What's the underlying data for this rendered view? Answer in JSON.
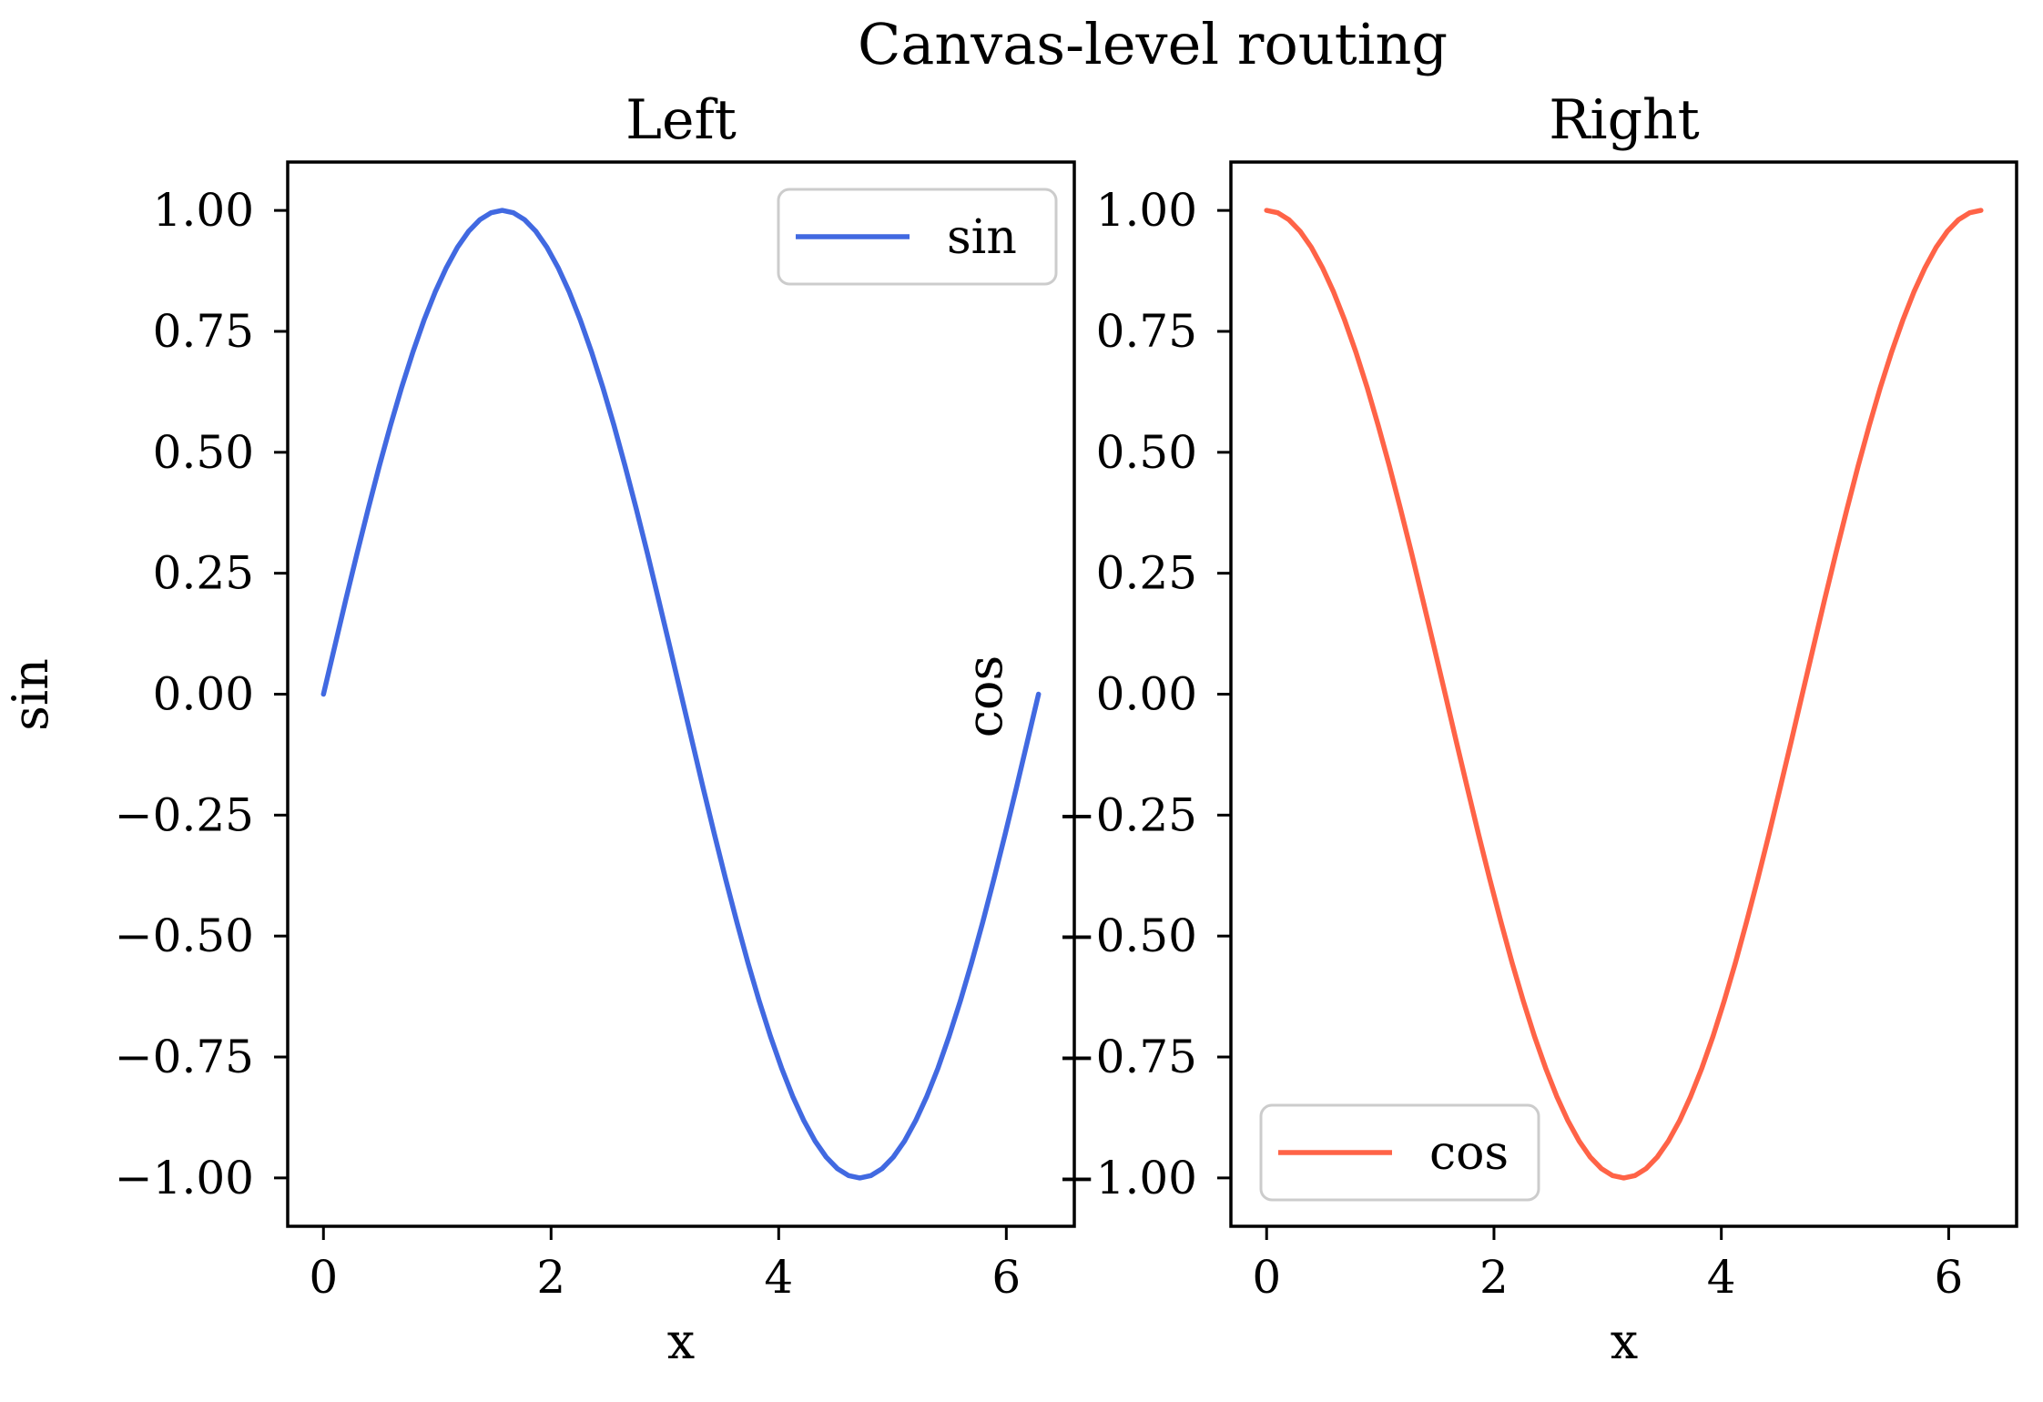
{
  "figure": {
    "suptitle": "Canvas-level routing",
    "background_color": "#ffffff",
    "text_color": "#000000",
    "spine_color": "#000000"
  },
  "chart_data": [
    {
      "type": "line",
      "title": "Left",
      "xlabel": "x",
      "ylabel": "sin",
      "xlim": [
        -0.3142,
        6.5974
      ],
      "ylim": [
        -1.1,
        1.1
      ],
      "grid": false,
      "legend": {
        "label": "sin",
        "position": "upper right"
      },
      "xticks": [
        {
          "value": 0,
          "label": "0"
        },
        {
          "value": 2,
          "label": "2"
        },
        {
          "value": 4,
          "label": "4"
        },
        {
          "value": 6,
          "label": "6"
        }
      ],
      "yticks": [
        {
          "value": 1.0,
          "label": "1.00"
        },
        {
          "value": 0.75,
          "label": "0.75"
        },
        {
          "value": 0.5,
          "label": "0.50"
        },
        {
          "value": 0.25,
          "label": "0.25"
        },
        {
          "value": 0.0,
          "label": "0.00"
        },
        {
          "value": -0.25,
          "label": "−0.25"
        },
        {
          "value": -0.5,
          "label": "−0.50"
        },
        {
          "value": -0.75,
          "label": "−0.75"
        },
        {
          "value": -1.0,
          "label": "−1.00"
        }
      ],
      "series": [
        {
          "name": "sin",
          "color": "#4169E1",
          "x": [
            0.0,
            0.0982,
            0.1963,
            0.2945,
            0.3927,
            0.4909,
            0.589,
            0.6872,
            0.7854,
            0.8836,
            0.9817,
            1.0799,
            1.1781,
            1.2763,
            1.3744,
            1.4726,
            1.5708,
            1.669,
            1.7671,
            1.8653,
            1.9635,
            2.0617,
            2.1598,
            2.258,
            2.3562,
            2.4544,
            2.5525,
            2.6507,
            2.7489,
            2.8471,
            2.9452,
            3.0434,
            3.1416,
            3.2398,
            3.3379,
            3.4361,
            3.5343,
            3.6325,
            3.7306,
            3.8288,
            3.927,
            4.0252,
            4.1233,
            4.2215,
            4.3197,
            4.4179,
            4.516,
            4.6142,
            4.7124,
            4.8106,
            4.9087,
            5.0069,
            5.1051,
            5.2033,
            5.3014,
            5.3996,
            5.4978,
            5.596,
            5.6941,
            5.7923,
            5.8905,
            5.9887,
            6.0868,
            6.185,
            6.2832
          ],
          "y": [
            0.0,
            0.098,
            0.1951,
            0.2903,
            0.3827,
            0.4714,
            0.5556,
            0.6344,
            0.7071,
            0.773,
            0.8315,
            0.8819,
            0.9239,
            0.9569,
            0.9808,
            0.9952,
            1.0,
            0.9952,
            0.9808,
            0.9569,
            0.9239,
            0.8819,
            0.8315,
            0.773,
            0.7071,
            0.6344,
            0.5556,
            0.4714,
            0.3827,
            0.2903,
            0.1951,
            0.098,
            0.0,
            -0.098,
            -0.1951,
            -0.2903,
            -0.3827,
            -0.4714,
            -0.5556,
            -0.6344,
            -0.7071,
            -0.773,
            -0.8315,
            -0.8819,
            -0.9239,
            -0.9569,
            -0.9808,
            -0.9952,
            -1.0,
            -0.9952,
            -0.9808,
            -0.9569,
            -0.9239,
            -0.8819,
            -0.8315,
            -0.773,
            -0.7071,
            -0.6344,
            -0.5556,
            -0.4714,
            -0.3827,
            -0.2903,
            -0.1951,
            -0.098,
            0.0
          ]
        }
      ]
    },
    {
      "type": "line",
      "title": "Right",
      "xlabel": "x",
      "ylabel": "cos",
      "xlim": [
        -0.3142,
        6.5974
      ],
      "ylim": [
        -1.1,
        1.1
      ],
      "grid": false,
      "legend": {
        "label": "cos",
        "position": "lower left"
      },
      "xticks": [
        {
          "value": 0,
          "label": "0"
        },
        {
          "value": 2,
          "label": "2"
        },
        {
          "value": 4,
          "label": "4"
        },
        {
          "value": 6,
          "label": "6"
        }
      ],
      "yticks": [
        {
          "value": 1.0,
          "label": "1.00"
        },
        {
          "value": 0.75,
          "label": "0.75"
        },
        {
          "value": 0.5,
          "label": "0.50"
        },
        {
          "value": 0.25,
          "label": "0.25"
        },
        {
          "value": 0.0,
          "label": "0.00"
        },
        {
          "value": -0.25,
          "label": "−0.25"
        },
        {
          "value": -0.5,
          "label": "−0.50"
        },
        {
          "value": -0.75,
          "label": "−0.75"
        },
        {
          "value": -1.0,
          "label": "−1.00"
        }
      ],
      "series": [
        {
          "name": "cos",
          "color": "#FF6347",
          "x": [
            0.0,
            0.0982,
            0.1963,
            0.2945,
            0.3927,
            0.4909,
            0.589,
            0.6872,
            0.7854,
            0.8836,
            0.9817,
            1.0799,
            1.1781,
            1.2763,
            1.3744,
            1.4726,
            1.5708,
            1.669,
            1.7671,
            1.8653,
            1.9635,
            2.0617,
            2.1598,
            2.258,
            2.3562,
            2.4544,
            2.5525,
            2.6507,
            2.7489,
            2.8471,
            2.9452,
            3.0434,
            3.1416,
            3.2398,
            3.3379,
            3.4361,
            3.5343,
            3.6325,
            3.7306,
            3.8288,
            3.927,
            4.0252,
            4.1233,
            4.2215,
            4.3197,
            4.4179,
            4.516,
            4.6142,
            4.7124,
            4.8106,
            4.9087,
            5.0069,
            5.1051,
            5.2033,
            5.3014,
            5.3996,
            5.4978,
            5.596,
            5.6941,
            5.7923,
            5.8905,
            5.9887,
            6.0868,
            6.185,
            6.2832
          ],
          "y": [
            1.0,
            0.9952,
            0.9808,
            0.9569,
            0.9239,
            0.8819,
            0.8315,
            0.773,
            0.7071,
            0.6344,
            0.5556,
            0.4714,
            0.3827,
            0.2903,
            0.1951,
            0.098,
            0.0,
            -0.098,
            -0.1951,
            -0.2903,
            -0.3827,
            -0.4714,
            -0.5556,
            -0.6344,
            -0.7071,
            -0.773,
            -0.8315,
            -0.8819,
            -0.9239,
            -0.9569,
            -0.9808,
            -0.9952,
            -1.0,
            -0.9952,
            -0.9808,
            -0.9569,
            -0.9239,
            -0.8819,
            -0.8315,
            -0.773,
            -0.7071,
            -0.6344,
            -0.5556,
            -0.4714,
            -0.3827,
            -0.2903,
            -0.1951,
            -0.098,
            0.0,
            0.098,
            0.1951,
            0.2903,
            0.3827,
            0.4714,
            0.5556,
            0.6344,
            0.7071,
            0.773,
            0.8315,
            0.8819,
            0.9239,
            0.9569,
            0.9808,
            0.9952,
            1.0
          ]
        }
      ]
    }
  ]
}
